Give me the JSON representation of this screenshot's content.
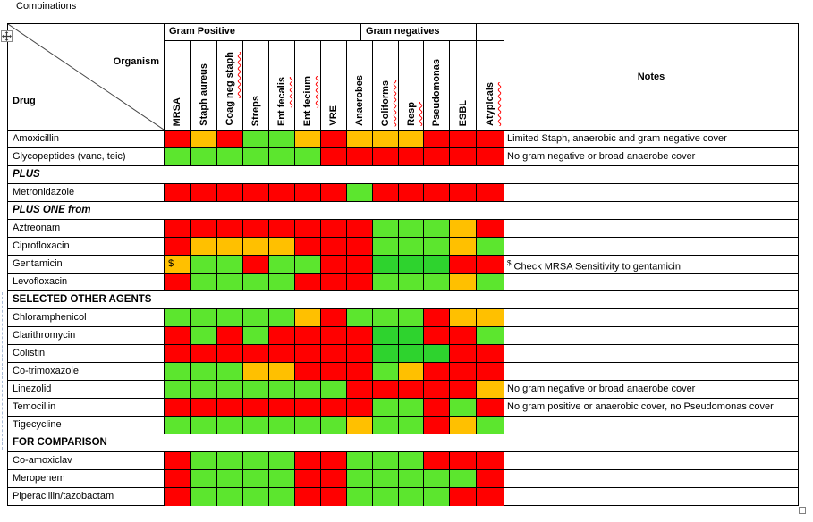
{
  "title": "Combinations",
  "corner": {
    "organism": "Organism",
    "drug": "Drug"
  },
  "groups": {
    "gram_positive": "Gram Positive",
    "gram_negatives": "Gram negatives"
  },
  "notes_header": "Notes",
  "colors": {
    "red": "#ff0000",
    "orange": "#ffc000",
    "green": "#5ce62e",
    "green_dark": "#2ed32e",
    "squiggle": "#ff0000",
    "border": "#000000"
  },
  "columns": [
    {
      "pre": "MRSA",
      "wavy": ""
    },
    {
      "pre": "Staph aureus",
      "wavy": ""
    },
    {
      "pre": "Coag ",
      "wavy": "neg staph"
    },
    {
      "pre": "Streps",
      "wavy": ""
    },
    {
      "pre": "Ent ",
      "wavy": "fecalis"
    },
    {
      "pre": "Ent ",
      "wavy": "fecium"
    },
    {
      "pre": "VRE",
      "wavy": ""
    },
    {
      "pre": "Anaerobes",
      "wavy": ""
    },
    {
      "pre": "",
      "wavy": "Coliforms"
    },
    {
      "pre": "",
      "wavy": "Resp"
    },
    {
      "pre": "Pseudomonas",
      "wavy": ""
    },
    {
      "pre": "ESBL",
      "wavy": ""
    },
    {
      "pre": "",
      "wavy": "Atypicals"
    }
  ],
  "rows": [
    {
      "type": "drug",
      "label": "Amoxicillin",
      "cells": [
        "r",
        "o",
        "r",
        "g",
        "g",
        "o",
        "r",
        "o",
        "o",
        "o",
        "r",
        "r",
        "r"
      ],
      "note": "Limited Staph, anaerobic and gram negative cover"
    },
    {
      "type": "drug",
      "label": "Glycopeptides (vanc, teic)",
      "cells": [
        "g",
        "g",
        "g",
        "g",
        "g",
        "g",
        "r",
        "r",
        "r",
        "r",
        "r",
        "r",
        "r"
      ],
      "note": "No gram negative or broad anaerobe cover"
    },
    {
      "type": "section-italic",
      "label": "PLUS"
    },
    {
      "type": "drug",
      "label": "Metronidazole",
      "cells": [
        "r",
        "r",
        "r",
        "r",
        "r",
        "r",
        "r",
        "g",
        "r",
        "r",
        "r",
        "r",
        "r"
      ],
      "note": ""
    },
    {
      "type": "section-italic",
      "label": "PLUS ONE from"
    },
    {
      "type": "drug",
      "label": "Aztreonam",
      "cells": [
        "r",
        "r",
        "r",
        "r",
        "r",
        "r",
        "r",
        "r",
        "g",
        "g",
        "g",
        "o",
        "r"
      ],
      "note": ""
    },
    {
      "type": "drug",
      "label": "Ciprofloxacin",
      "cells": [
        "r",
        "o",
        "o",
        "o",
        "o",
        "r",
        "r",
        "r",
        "g",
        "g",
        "g",
        "o",
        "g"
      ],
      "note": ""
    },
    {
      "type": "drug",
      "label": "Gentamicin",
      "cells": [
        "o",
        "g",
        "g",
        "r",
        "g",
        "g",
        "r",
        "r",
        "G",
        "G",
        "G",
        "r",
        "r"
      ],
      "cell_text": {
        "0": "$"
      },
      "note_sup": "$",
      "note": "Check MRSA Sensitivity to gentamicin"
    },
    {
      "type": "drug",
      "label": "Levofloxacin",
      "cells": [
        "r",
        "g",
        "g",
        "g",
        "g",
        "r",
        "r",
        "r",
        "g",
        "g",
        "g",
        "o",
        "g"
      ],
      "note": ""
    },
    {
      "type": "section",
      "label": "SELECTED OTHER AGENTS"
    },
    {
      "type": "drug",
      "label": "Chloramphenicol",
      "cells": [
        "g",
        "g",
        "g",
        "g",
        "g",
        "o",
        "r",
        "g",
        "g",
        "g",
        "r",
        "o",
        "o"
      ],
      "note": ""
    },
    {
      "type": "drug",
      "label": "Clarithromycin",
      "cells": [
        "r",
        "g",
        "r",
        "g",
        "r",
        "r",
        "r",
        "r",
        "G",
        "G",
        "r",
        "r",
        "g"
      ],
      "note": ""
    },
    {
      "type": "drug",
      "label": "Colistin",
      "cells": [
        "r",
        "r",
        "r",
        "r",
        "r",
        "r",
        "r",
        "r",
        "G",
        "G",
        "G",
        "r",
        "r"
      ],
      "note": ""
    },
    {
      "type": "drug",
      "label": "Co-trimoxazole",
      "cells": [
        "g",
        "g",
        "g",
        "o",
        "o",
        "r",
        "r",
        "r",
        "g",
        "o",
        "r",
        "r",
        "r"
      ],
      "note": ""
    },
    {
      "type": "drug",
      "label": "Linezolid",
      "cells": [
        "g",
        "g",
        "g",
        "g",
        "g",
        "g",
        "g",
        "r",
        "r",
        "r",
        "r",
        "r",
        "o"
      ],
      "note": "No gram negative or broad anaerobe cover"
    },
    {
      "type": "drug",
      "label": "Temocillin",
      "cells": [
        "r",
        "r",
        "r",
        "r",
        "r",
        "r",
        "r",
        "r",
        "g",
        "g",
        "r",
        "g",
        "r"
      ],
      "note": "No gram positive or anaerobic cover, no Pseudomonas cover"
    },
    {
      "type": "drug",
      "label": "Tigecycline",
      "cells": [
        "g",
        "g",
        "g",
        "g",
        "g",
        "g",
        "g",
        "o",
        "g",
        "g",
        "r",
        "o",
        "g"
      ],
      "note": ""
    },
    {
      "type": "section",
      "label": "FOR COMPARISON"
    },
    {
      "type": "drug",
      "label": "Co-amoxiclav",
      "cells": [
        "r",
        "g",
        "g",
        "g",
        "g",
        "r",
        "r",
        "g",
        "g",
        "g",
        "r",
        "r",
        "r"
      ],
      "note": ""
    },
    {
      "type": "drug",
      "label": "Meropenem",
      "cells": [
        "r",
        "g",
        "g",
        "g",
        "g",
        "r",
        "r",
        "g",
        "g",
        "g",
        "g",
        "g",
        "r"
      ],
      "note": ""
    },
    {
      "type": "drug",
      "label": "Piperacillin/tazobactam",
      "cells": [
        "r",
        "g",
        "g",
        "g",
        "g",
        "r",
        "r",
        "g",
        "g",
        "g",
        "g",
        "r",
        "r"
      ],
      "note": ""
    }
  ]
}
